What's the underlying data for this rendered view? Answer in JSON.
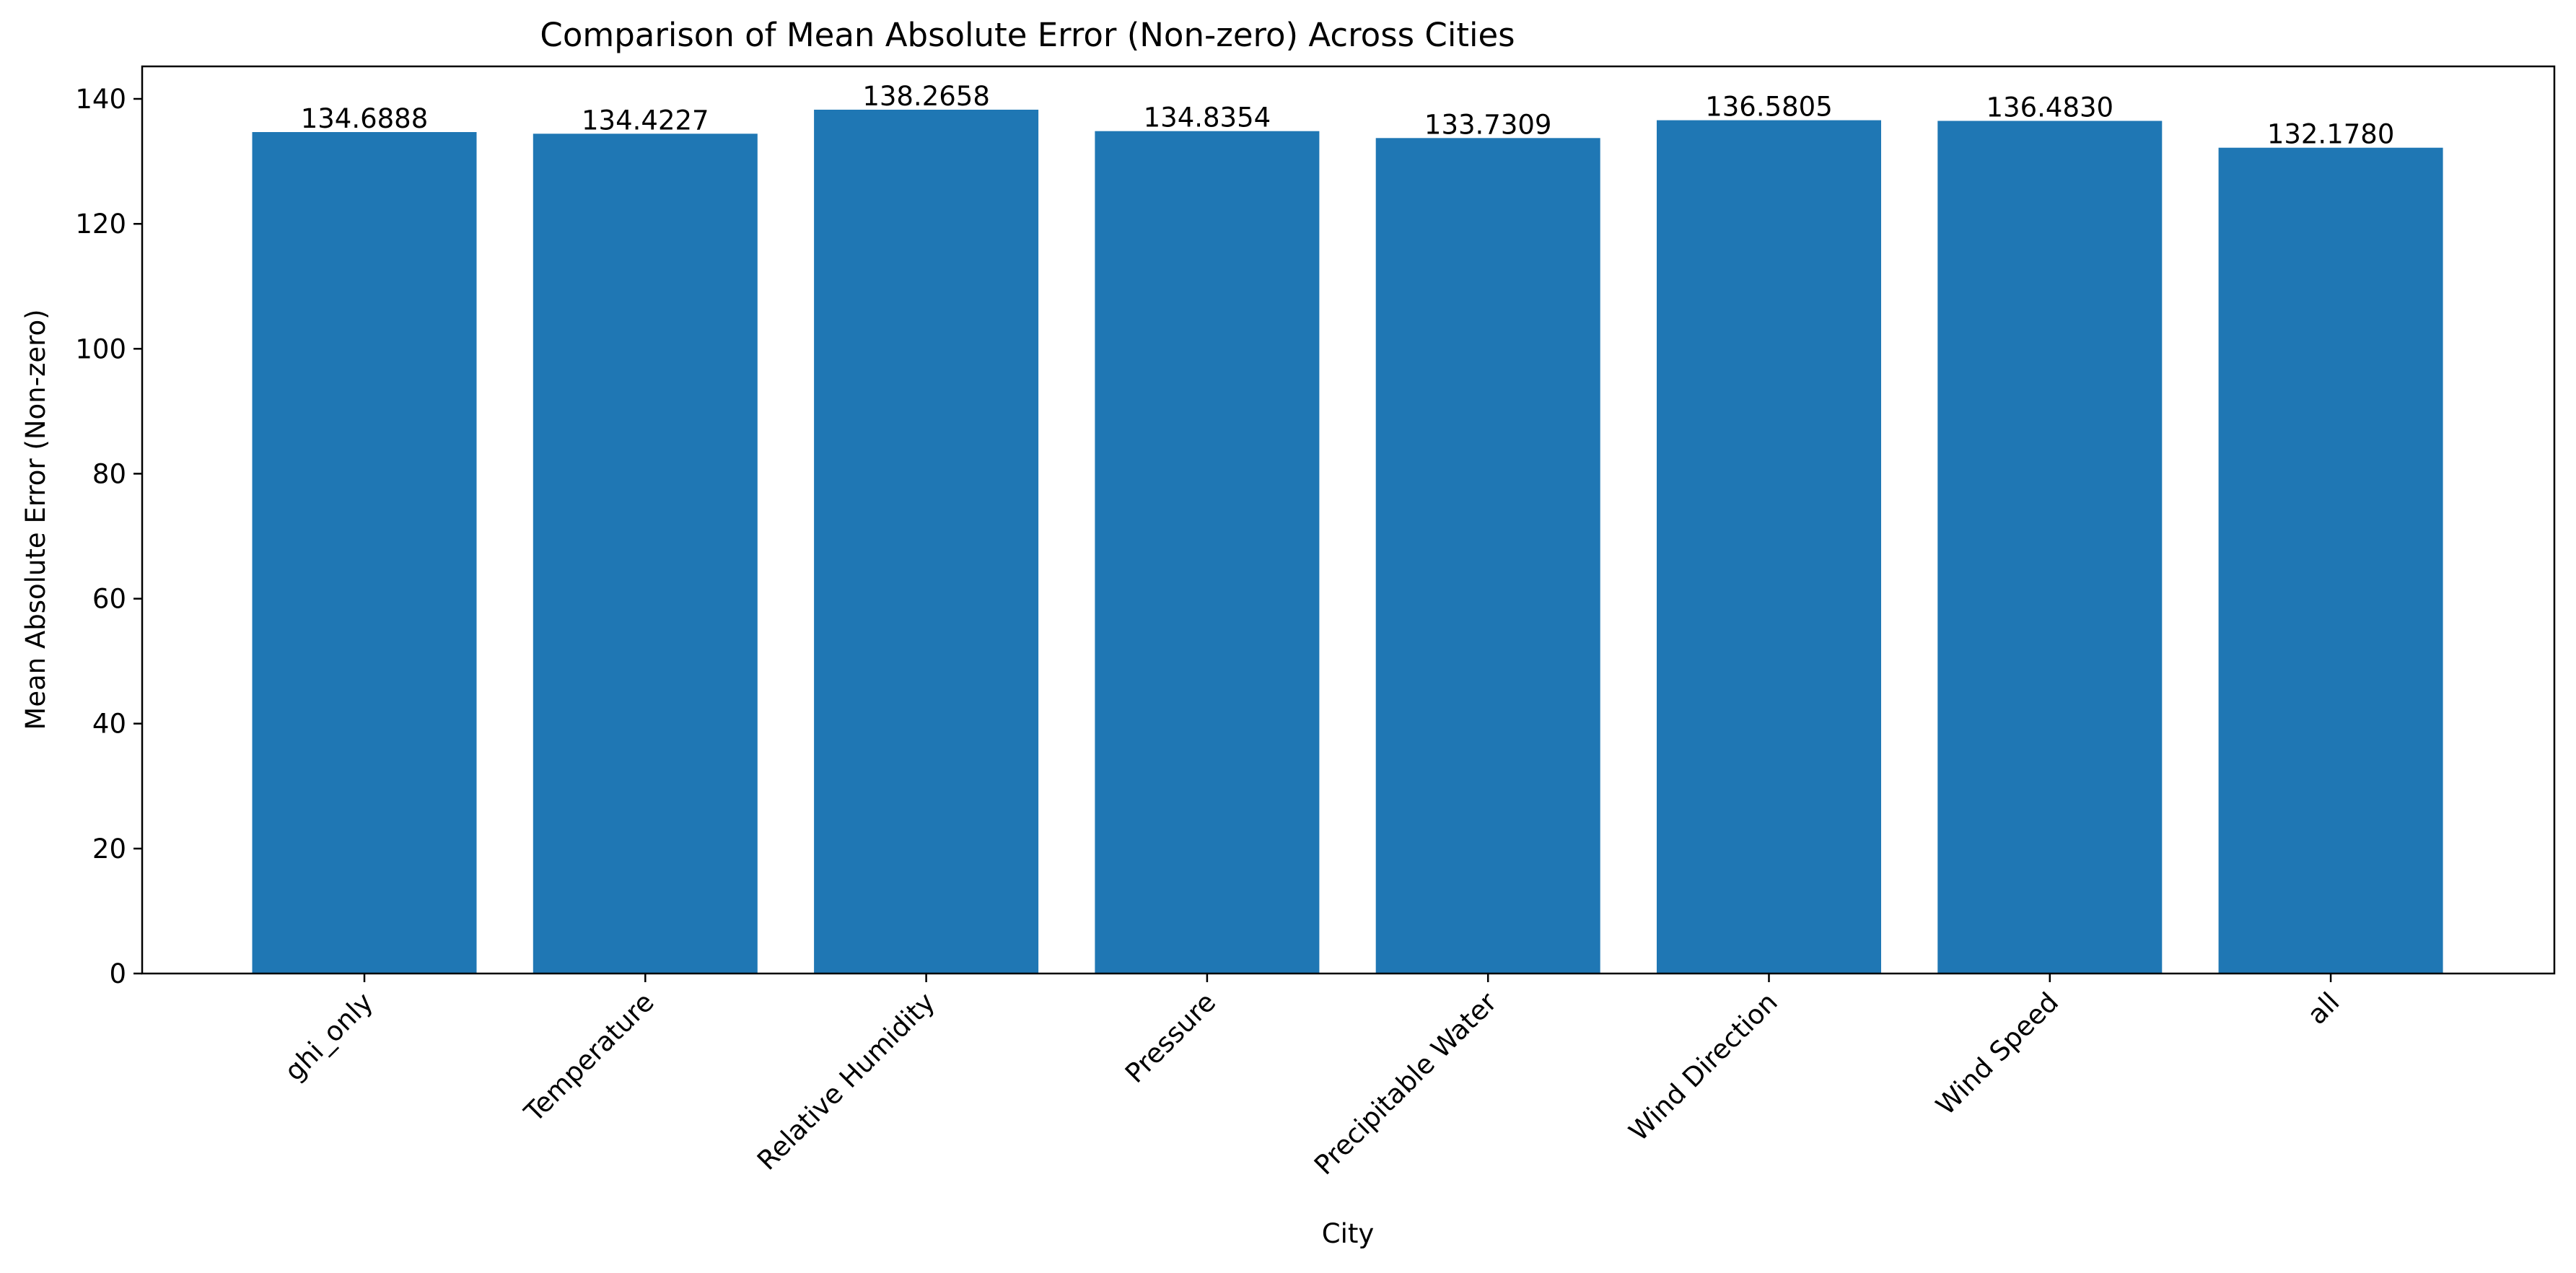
{
  "chart_data": {
    "type": "bar",
    "title": "Comparison of Mean Absolute Error (Non-zero) Across Cities",
    "xlabel": "City",
    "ylabel": "Mean Absolute Error (Non-zero)",
    "categories": [
      "ghi_only",
      "Temperature",
      "Relative Humidity",
      "Pressure",
      "Precipitable Water",
      "Wind Direction",
      "Wind Speed",
      "all"
    ],
    "values": [
      134.6888,
      134.4227,
      138.2658,
      134.8354,
      133.7309,
      136.5805,
      136.483,
      132.178
    ],
    "value_labels": [
      "134.6888",
      "134.4227",
      "138.2658",
      "134.8354",
      "133.7309",
      "136.5805",
      "136.4830",
      "132.1780"
    ],
    "ylim": [
      0,
      145.2
    ],
    "yticks": [
      0,
      20,
      40,
      60,
      80,
      100,
      120,
      140
    ],
    "bar_color": "#1f77b4",
    "grid": false,
    "legend": "none"
  }
}
